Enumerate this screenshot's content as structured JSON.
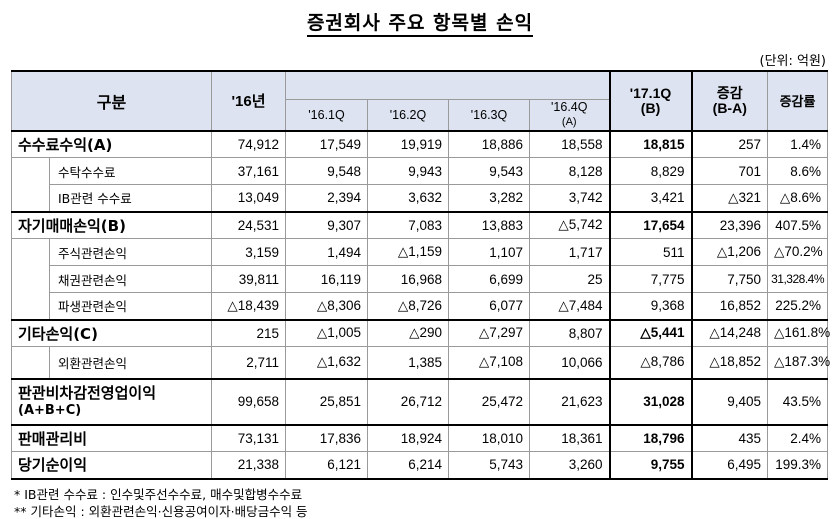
{
  "title": "증권회사 주요 항목별 손익",
  "unit": "(단위: 억원)",
  "header": {
    "category": "구분",
    "y16": "'16년",
    "q1": "'16.1Q",
    "q2": "'16.2Q",
    "q3": "'16.3Q",
    "q4_line1": "'16.4Q",
    "q4_line2": "(A)",
    "q17_line1": "'17.1Q",
    "q17_line2": "(B)",
    "diff_line1": "증감",
    "diff_line2": "(B-A)",
    "rate": "증감률"
  },
  "rows": [
    {
      "label": "수수료수익(A)",
      "v": [
        "74,912",
        "17,549",
        "19,919",
        "18,886",
        "18,558",
        "18,815",
        "257",
        "1.4%"
      ]
    },
    {
      "label": "수탁수수료",
      "v": [
        "37,161",
        "9,548",
        "9,943",
        "9,543",
        "8,128",
        "8,829",
        "701",
        "8.6%"
      ]
    },
    {
      "label": "IB관련 수수료",
      "v": [
        "13,049",
        "2,394",
        "3,632",
        "3,282",
        "3,742",
        "3,421",
        "△321",
        "△8.6%"
      ]
    },
    {
      "label": "자기매매손익(B)",
      "v": [
        "24,531",
        "9,307",
        "7,083",
        "13,883",
        "△5,742",
        "17,654",
        "23,396",
        "407.5%"
      ]
    },
    {
      "label": "주식관련손익",
      "v": [
        "3,159",
        "1,494",
        "△1,159",
        "1,107",
        "1,717",
        "511",
        "△1,206",
        "△70.2%"
      ]
    },
    {
      "label": "채권관련손익",
      "v": [
        "39,811",
        "16,119",
        "16,968",
        "6,699",
        "25",
        "7,775",
        "7,750",
        "31,328.4%"
      ]
    },
    {
      "label": "파생관련손익",
      "v": [
        "△18,439",
        "△8,306",
        "△8,726",
        "6,077",
        "△7,484",
        "9,368",
        "16,852",
        "225.2%"
      ]
    },
    {
      "label": "기타손익(C)",
      "v": [
        "215",
        "△1,005",
        "△290",
        "△7,297",
        "8,807",
        "△5,441",
        "△14,248",
        "△161.8%"
      ]
    },
    {
      "label": "외환관련손익",
      "v": [
        "2,711",
        "△1,632",
        "1,385",
        "△7,108",
        "10,066",
        "△8,786",
        "△18,852",
        "△187.3%"
      ]
    },
    {
      "label": "판관비차감전영업이익",
      "label2": "(A+B+C)",
      "v": [
        "99,658",
        "25,851",
        "26,712",
        "25,472",
        "21,623",
        "31,028",
        "9,405",
        "43.5%"
      ]
    },
    {
      "label": "판매관리비",
      "v": [
        "73,131",
        "17,836",
        "18,924",
        "18,010",
        "18,361",
        "18,796",
        "435",
        "2.4%"
      ]
    },
    {
      "label": "당기순이익",
      "v": [
        "21,338",
        "6,121",
        "6,214",
        "5,743",
        "3,260",
        "9,755",
        "6,495",
        "199.3%"
      ]
    }
  ],
  "footnotes": {
    "f1": "*  IB관련 수수료 : 인수및주선수수료, 매수및합병수수료",
    "f2": "**  기타손익 : 외환관련손익·신용공여이자·배당금수익 등"
  }
}
